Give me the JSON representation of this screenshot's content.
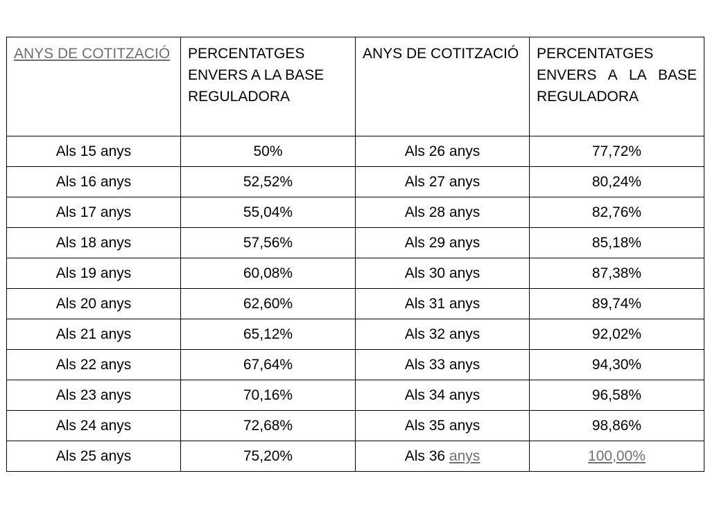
{
  "table": {
    "headers": [
      "ANYS DE COTITZACIÓ",
      "PERCENTATGES ENVERS A LA BASE REGULADORA",
      "ANYS DE COTITZACIÓ",
      "PERCENTATGES ENVERS A LA BASE REGULADORA"
    ],
    "rows": [
      [
        "Als 15 anys",
        "50%",
        "Als 26 anys",
        "77,72%"
      ],
      [
        "Als 16 anys",
        "52,52%",
        "Als 27 anys",
        "80,24%"
      ],
      [
        "Als 17 anys",
        "55,04%",
        "Als 28 anys",
        "82,76%"
      ],
      [
        "Als 18 anys",
        "57,56%",
        "Als 29 anys",
        "85,18%"
      ],
      [
        "Als 19 anys",
        "60,08%",
        "Als 30 anys",
        "87,38%"
      ],
      [
        "Als 20 anys",
        "62,60%",
        "Als 31 anys",
        "89,74%"
      ],
      [
        "Als 21 anys",
        "65,12%",
        "Als 32 anys",
        "92,02%"
      ],
      [
        "Als 22 anys",
        "67,64%",
        "Als 33 anys",
        "94,30%"
      ],
      [
        "Als 23 anys",
        "70,16%",
        "Als 34 anys",
        "96,58%"
      ],
      [
        "Als 24 anys",
        "72,68%",
        "Als 35 anys",
        "98,86%"
      ],
      [
        "Als 25 anys",
        "75,20%",
        "Als 36",
        "100,00%"
      ]
    ],
    "last_row_link_word": "anys"
  },
  "colors": {
    "link": "#6f6f6f",
    "border": "#000000",
    "text": "#000000"
  }
}
